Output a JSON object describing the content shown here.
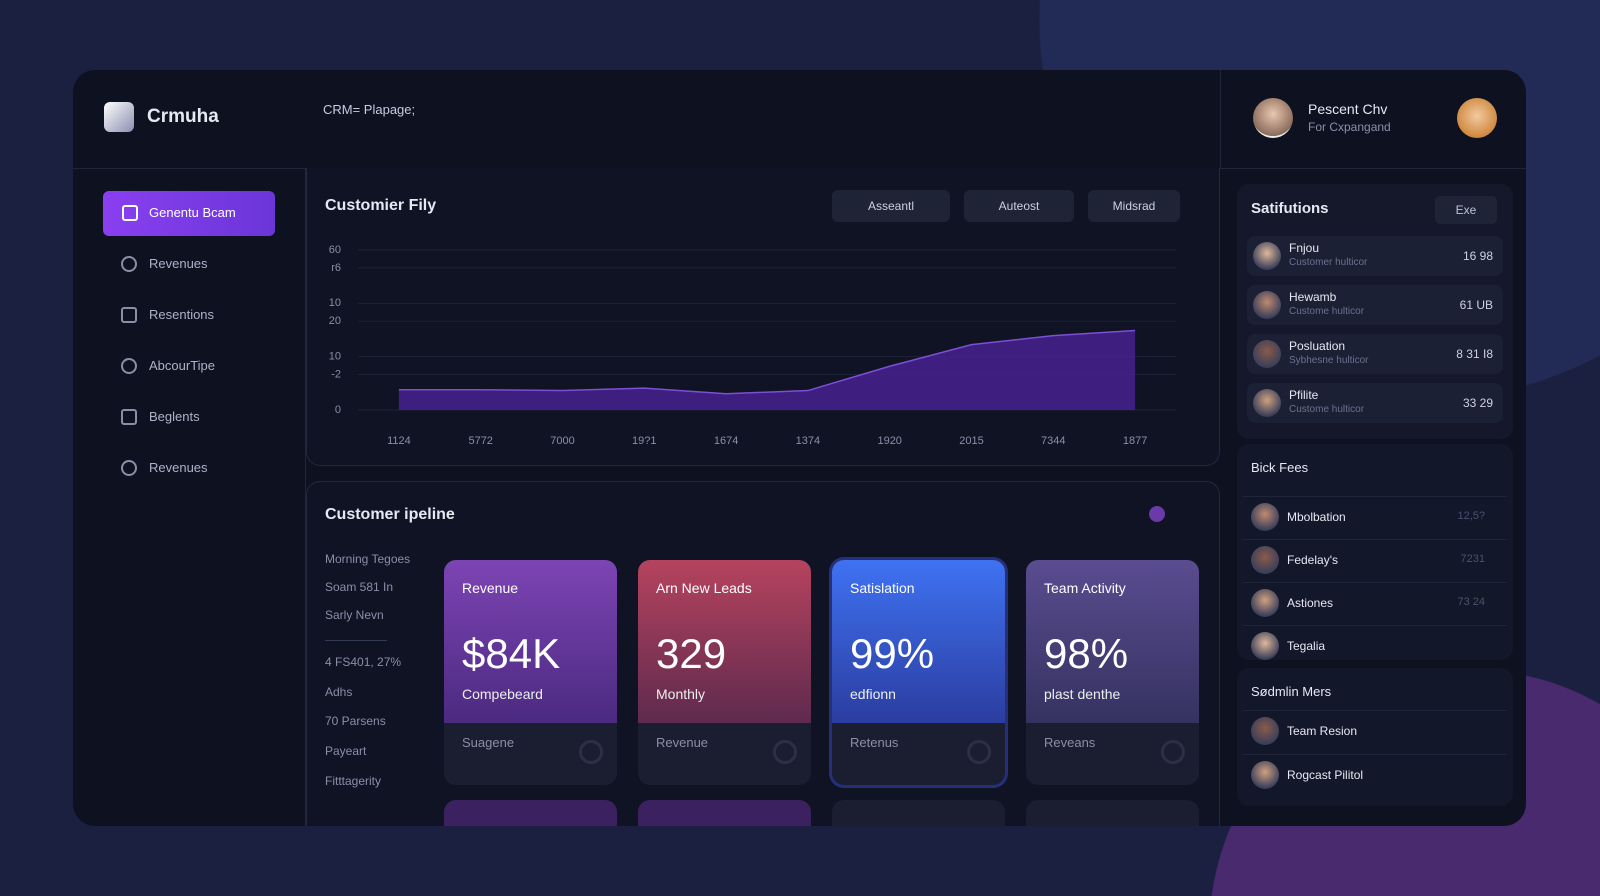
{
  "header": {
    "brand": "Crmuha",
    "breadcrumb": "CRM= Plapage;",
    "user_name": "Pescent Chv",
    "user_role": "For Cxpangand"
  },
  "nav": [
    "Genentu Bcam",
    "Revenues",
    "Resentions",
    "AbcourTipe",
    "Beglents",
    "Revenues"
  ],
  "chart_data": {
    "type": "area",
    "title": "Customier Fily",
    "filters": [
      "Asseantl",
      "Auteost",
      "Midsrad"
    ],
    "categories": [
      "1124",
      "5772",
      "7000",
      "19?1",
      "1674",
      "1374",
      "1920",
      "2015",
      "7344",
      "1877"
    ],
    "values": [
      7.6,
      7.6,
      7.3,
      8.2,
      6.1,
      7.3,
      16.4,
      24.5,
      27.9,
      29.8
    ],
    "color": "#4a2396",
    "line_color": "#7b4fd6",
    "ylim": [
      0,
      60
    ],
    "yticks": [
      0,
      {
        "value": 13.3,
        "label": "-2"
      },
      {
        "value": 20,
        "label": "10"
      },
      {
        "value": 33.3,
        "label": "20"
      },
      {
        "value": 40,
        "label": "10"
      },
      {
        "value": 53.3,
        "label": "r6"
      },
      60
    ],
    "grid": true
  },
  "pipeline": {
    "title": "Customer ipeline",
    "notes": [
      "Morning Tegoes",
      "Soam 581 In",
      "Sarly Nevn",
      "4 FS401, 27%",
      "Adhs",
      "70 Parsens",
      "Payeart",
      "Fitttagerity"
    ],
    "cards": [
      {
        "title": "Revenue",
        "value": "$84K",
        "caption": "Compebeard",
        "footer": "Suagene"
      },
      {
        "title": "Arn New Leads",
        "value": "329",
        "caption": "Monthly",
        "footer": "Revenue"
      },
      {
        "title": "Satislation",
        "value": "99%",
        "caption": "edfionn",
        "footer": "Retenus"
      },
      {
        "title": "Team Activity",
        "value": "98%",
        "caption": "plast denthe",
        "footer": "Reveans"
      }
    ]
  },
  "side": {
    "satisfactions": {
      "title": "Satifutions",
      "button": "Exe",
      "items": [
        {
          "name": "Fnjou",
          "role": "Customer hulticor",
          "value": "16 98"
        },
        {
          "name": "Hewamb",
          "role": "Custome hulticor",
          "value": "61 UB"
        },
        {
          "name": "Posluation",
          "role": "Sybhesne hulticor",
          "value": "8 31 I8"
        },
        {
          "name": "Pfilite",
          "role": "Custome hulticor",
          "value": "33 29"
        }
      ]
    },
    "fees": {
      "title": "Bick Fees",
      "items": [
        {
          "name": "Mbolbation",
          "value": "12,5?"
        },
        {
          "name": "Fedelay's",
          "value": "7231"
        },
        {
          "name": "Astiones",
          "value": "73 24"
        },
        {
          "name": "Tegalia",
          "value": ""
        }
      ]
    },
    "members": {
      "title": "Sødmlin Mers",
      "items": [
        {
          "name": "Team Resion"
        },
        {
          "name": "Rogcast Pilitol"
        }
      ]
    }
  }
}
